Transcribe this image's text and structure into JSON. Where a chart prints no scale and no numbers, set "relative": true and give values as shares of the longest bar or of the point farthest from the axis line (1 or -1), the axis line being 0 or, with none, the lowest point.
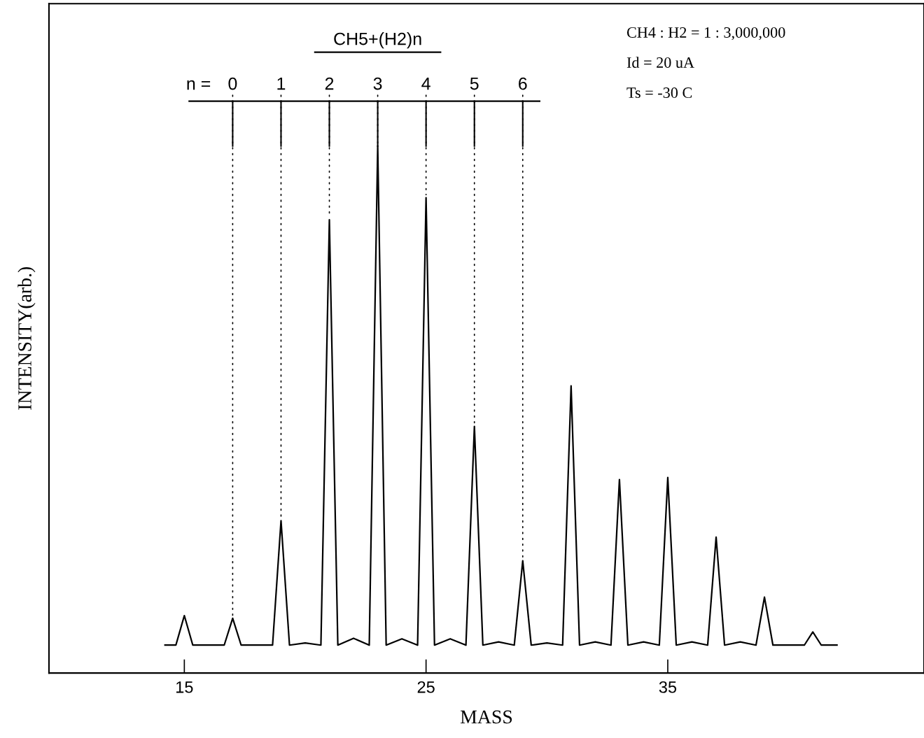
{
  "chart_data": {
    "type": "line",
    "relative": true,
    "xlabel": "MASS",
    "ylabel": "INTENSITY(arb.)",
    "xlim": [
      9.4,
      45.6
    ],
    "xticks": [
      15,
      25,
      35
    ],
    "grid": false,
    "marker": "none",
    "line_style": "solid",
    "tick_labels": "x",
    "series": [
      {
        "color": "#000000",
        "x": [
          14.2,
          14.65,
          15,
          15.35,
          16.65,
          17,
          17.35,
          18.65,
          19,
          19.35,
          20,
          20.65,
          21,
          21.35,
          22,
          22.65,
          23,
          23.35,
          24,
          24.65,
          25,
          25.35,
          26,
          26.65,
          27,
          27.35,
          28,
          28.65,
          29,
          29.35,
          30,
          30.65,
          31,
          31.35,
          32,
          32.65,
          33,
          33.35,
          34,
          34.65,
          35,
          35.35,
          36,
          36.65,
          37,
          37.35,
          38,
          38.65,
          39,
          39.35,
          40.65,
          41,
          41.35,
          42
        ],
        "values": [
          0.053,
          0.053,
          0.109,
          0.053,
          0.053,
          0.104,
          0.053,
          0.053,
          0.289,
          0.053,
          0.057,
          0.053,
          0.86,
          0.053,
          0.066,
          0.053,
          1.0,
          0.053,
          0.065,
          0.053,
          0.902,
          0.053,
          0.065,
          0.053,
          0.468,
          0.053,
          0.059,
          0.053,
          0.213,
          0.053,
          0.057,
          0.053,
          0.545,
          0.053,
          0.059,
          0.053,
          0.367,
          0.053,
          0.059,
          0.053,
          0.371,
          0.053,
          0.059,
          0.053,
          0.258,
          0.053,
          0.059,
          0.053,
          0.144,
          0.053,
          0.053,
          0.078,
          0.053,
          0.053
        ]
      }
    ],
    "annotations": [
      "CH5+(H2)n",
      "n =",
      "CH4 : H2 = 1 : 3,000,000",
      "Id = 20 uA",
      "Ts = -30 C",
      {
        "text": "0",
        "x": 17,
        "y": 0.104
      },
      {
        "text": "1",
        "x": 19,
        "y": 0.289
      },
      {
        "text": "2",
        "x": 21,
        "y": 0.86
      },
      {
        "text": "3",
        "x": 23,
        "y": 1.0
      },
      {
        "text": "4",
        "x": 25,
        "y": 0.902
      },
      {
        "text": "5",
        "x": 27,
        "y": 0.468
      },
      {
        "text": "6",
        "x": 29,
        "y": 0.213
      }
    ]
  }
}
